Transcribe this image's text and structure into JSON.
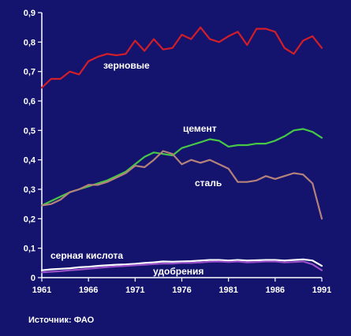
{
  "chart_data": {
    "type": "line",
    "background": "#14146e",
    "axis_color": "#ffffff",
    "xlim": [
      1961,
      1991
    ],
    "ylim": [
      0,
      0.9
    ],
    "x_ticks": [
      "1961",
      "1966",
      "1971",
      "1976",
      "1981",
      "1986",
      "1991"
    ],
    "y_ticks": [
      "0",
      "0,1",
      "0,2",
      "0,3",
      "0,4",
      "0,5",
      "0,6",
      "0,7",
      "0,8",
      "0,9"
    ],
    "grid": false,
    "source": "Источник: ФАО",
    "x": [
      1961,
      1962,
      1963,
      1964,
      1965,
      1966,
      1967,
      1968,
      1969,
      1970,
      1971,
      1972,
      1973,
      1974,
      1975,
      1976,
      1977,
      1978,
      1979,
      1980,
      1981,
      1982,
      1983,
      1984,
      1985,
      1986,
      1987,
      1988,
      1989,
      1990,
      1991
    ],
    "series": [
      {
        "name": "зерновые",
        "color": "#d21e28",
        "values": [
          0.645,
          0.675,
          0.675,
          0.7,
          0.69,
          0.735,
          0.75,
          0.76,
          0.755,
          0.76,
          0.805,
          0.77,
          0.81,
          0.775,
          0.78,
          0.825,
          0.81,
          0.85,
          0.81,
          0.8,
          0.82,
          0.835,
          0.79,
          0.845,
          0.845,
          0.835,
          0.78,
          0.76,
          0.805,
          0.82,
          0.78
        ]
      },
      {
        "name": "цемент",
        "color": "#46c846",
        "values": [
          0.245,
          0.26,
          0.275,
          0.29,
          0.3,
          0.31,
          0.32,
          0.33,
          0.345,
          0.36,
          0.385,
          0.41,
          0.425,
          0.42,
          0.415,
          0.44,
          0.45,
          0.46,
          0.47,
          0.465,
          0.445,
          0.45,
          0.45,
          0.455,
          0.455,
          0.465,
          0.48,
          0.5,
          0.505,
          0.495,
          0.475
        ]
      },
      {
        "name": "сталь",
        "color": "#b4827a",
        "values": [
          0.245,
          0.25,
          0.265,
          0.29,
          0.3,
          0.315,
          0.315,
          0.325,
          0.34,
          0.355,
          0.38,
          0.375,
          0.4,
          0.43,
          0.42,
          0.385,
          0.4,
          0.39,
          0.4,
          0.385,
          0.37,
          0.325,
          0.325,
          0.33,
          0.345,
          0.335,
          0.345,
          0.355,
          0.35,
          0.32,
          0.2
        ]
      },
      {
        "name": "серная кислота",
        "color": "#ffffff",
        "values": [
          0.025,
          0.028,
          0.03,
          0.032,
          0.035,
          0.037,
          0.04,
          0.042,
          0.044,
          0.045,
          0.047,
          0.05,
          0.052,
          0.055,
          0.054,
          0.055,
          0.056,
          0.058,
          0.06,
          0.06,
          0.058,
          0.06,
          0.058,
          0.059,
          0.06,
          0.06,
          0.058,
          0.06,
          0.062,
          0.058,
          0.04
        ]
      },
      {
        "name": "удобрения",
        "color": "#9a50c8",
        "values": [
          0.018,
          0.02,
          0.022,
          0.025,
          0.027,
          0.03,
          0.033,
          0.036,
          0.038,
          0.04,
          0.042,
          0.044,
          0.046,
          0.048,
          0.048,
          0.05,
          0.05,
          0.052,
          0.054,
          0.055,
          0.053,
          0.055,
          0.052,
          0.053,
          0.055,
          0.055,
          0.052,
          0.053,
          0.055,
          0.045,
          0.025
        ]
      }
    ]
  }
}
